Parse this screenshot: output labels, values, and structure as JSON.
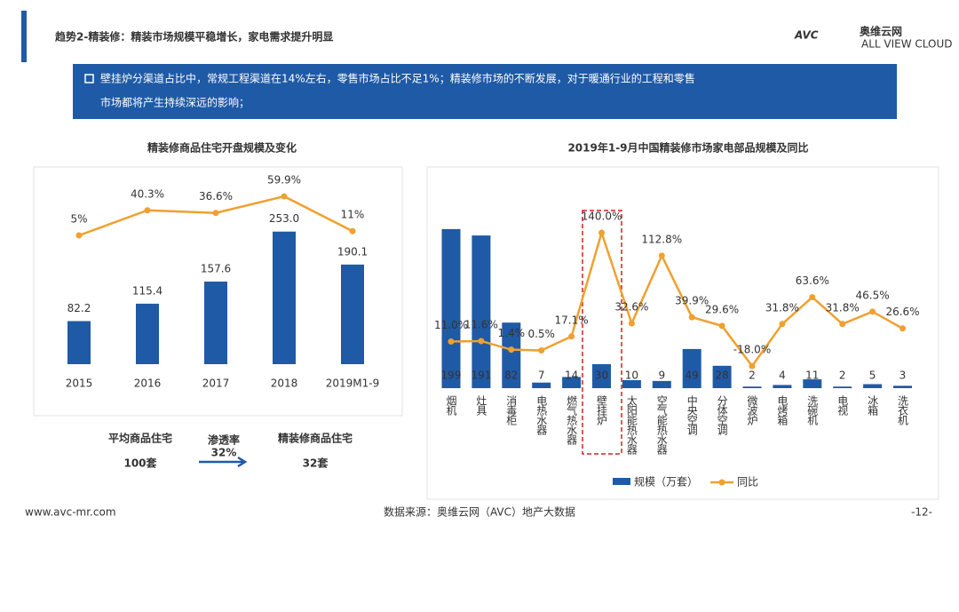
{
  "header": {
    "title": "趋势2-精装修：精装市场规模平稳增长，家电需求提升明显",
    "logo": "AVC",
    "logo_cn": "奥维云网",
    "logo_en": "ALL VIEW CLOUD"
  },
  "banner": {
    "text_1": "壁挂炉分渠道占比中，常规工程渠道在14%左右，零售市场占比不足1%；精装修市场的不断发展，对于暖通行业的工程和零售",
    "text_2": "市场都将产生持续深远的影响；"
  },
  "chart_data": [
    {
      "type": "bar-line",
      "title": "精装修商品住宅开盘规模及变化",
      "categories": [
        "2015",
        "2016",
        "2017",
        "2018",
        "2019M1-9"
      ],
      "series": [
        {
          "name": "规模",
          "color": "#1f5aa6",
          "values": [
            82.2,
            115.4,
            157.6,
            253.0,
            190.1
          ],
          "value_labels": [
            "82.2",
            "115.4",
            "157.6",
            "253.0",
            "190.1"
          ]
        },
        {
          "name": "同比",
          "color": "#f0a030",
          "values": [
            5,
            40.3,
            36.6,
            59.9,
            11
          ],
          "value_labels": [
            "5%",
            "40.3%",
            "36.6%",
            "59.9%",
            "11%"
          ]
        }
      ]
    },
    {
      "type": "bar-line",
      "title": "2019年1-9月中国精装修市场家电部品规模及同比",
      "categories": [
        "烟机",
        "灶具",
        "消毒柜",
        "电热水器",
        "燃气热水器",
        "壁挂炉",
        "太阳能热水器",
        "空气能热水器",
        "中央空调",
        "分体空调",
        "微波炉",
        "电烤箱",
        "洗碗机",
        "电视",
        "冰箱",
        "洗衣机"
      ],
      "series": [
        {
          "name": "规模（万套）",
          "color": "#1f5aa6",
          "values": [
            199,
            191,
            82,
            7,
            14,
            30,
            10,
            9,
            49,
            28,
            2,
            4,
            11,
            2,
            5,
            3
          ]
        },
        {
          "name": "同比",
          "color": "#f0a030",
          "values": [
            11.0,
            11.6,
            1.4,
            0.5,
            17.1,
            140.0,
            32.6,
            112.8,
            39.9,
            29.6,
            -18.0,
            31.8,
            63.6,
            31.8,
            46.5,
            26.6
          ],
          "value_labels": [
            "11.0%",
            "11.6%",
            "1.4%",
            "0.5%",
            "17.1%",
            "140.0%",
            "32.6%",
            "112.8%",
            "39.9%",
            "29.6%",
            "-18.0%",
            "31.8%",
            "63.6%",
            "31.8%",
            "46.5%",
            "26.6%"
          ]
        }
      ]
    }
  ],
  "summary": {
    "left_label": "平均商品住宅",
    "left_value": "100套",
    "rate_label": "渗透率",
    "rate_value": "32%",
    "right_label": "精装修商品住宅",
    "right_value": "32套"
  },
  "footer": {
    "url": "www.avc-mr.com",
    "source": "数据来源：奥维云网（AVC）地产大数据",
    "page": "-12-"
  }
}
